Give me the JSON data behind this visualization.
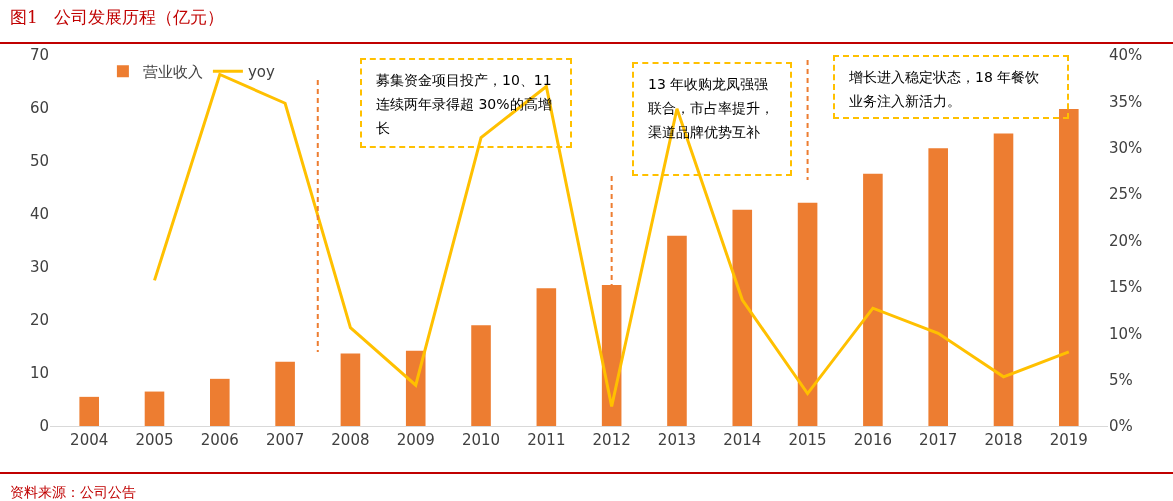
{
  "chart_data": {
    "type": "bar",
    "title": "图1   公司发展历程（亿元）",
    "categories": [
      "2004",
      "2005",
      "2006",
      "2007",
      "2008",
      "2009",
      "2010",
      "2011",
      "2012",
      "2013",
      "2014",
      "2015",
      "2016",
      "2017",
      "2018",
      "2019"
    ],
    "series": [
      {
        "name": "营业收入",
        "color": "#ed7d31",
        "values": [
          5.5,
          6.5,
          8.9,
          12.1,
          13.7,
          14.2,
          19.0,
          26.0,
          26.6,
          35.9,
          40.8,
          42.1,
          47.6,
          52.4,
          55.2,
          59.8
        ]
      },
      {
        "name": "yoy",
        "type": "line",
        "axis": "y2",
        "color": "#ffc000",
        "values": [
          null,
          15.7,
          37.9,
          34.8,
          10.6,
          4.4,
          31.1,
          36.6,
          2.1,
          34.2,
          13.6,
          3.5,
          12.7,
          10.0,
          5.3,
          8.0
        ]
      }
    ],
    "ylim": [
      0,
      70
    ],
    "yticks": [
      0,
      10,
      20,
      30,
      40,
      50,
      60,
      70
    ],
    "y2lim": [
      0,
      40
    ],
    "y2ticks": [
      {
        "value": 0,
        "label": "0%"
      },
      {
        "value": 5,
        "label": "5%"
      },
      {
        "value": 10,
        "label": "10%"
      },
      {
        "value": 15,
        "label": "15%"
      },
      {
        "value": 20,
        "label": "20%"
      },
      {
        "value": 25,
        "label": "25%"
      },
      {
        "value": 30,
        "label": "30%"
      },
      {
        "value": 35,
        "label": "35%"
      },
      {
        "value": 40,
        "label": "40%"
      }
    ],
    "grid": false,
    "legend": "top left",
    "marker": "none",
    "line_style": "solid",
    "annotations": [
      "募集资金项目投产，10、11 连续两年录得超 30%的高增长",
      "13 年收购龙凤强强联合，市占率提升，渠道品牌优势互补",
      "增长进入稳定状态，18 年餐饮业务注入新活力。",
      "资料来源：公司公告"
    ]
  }
}
